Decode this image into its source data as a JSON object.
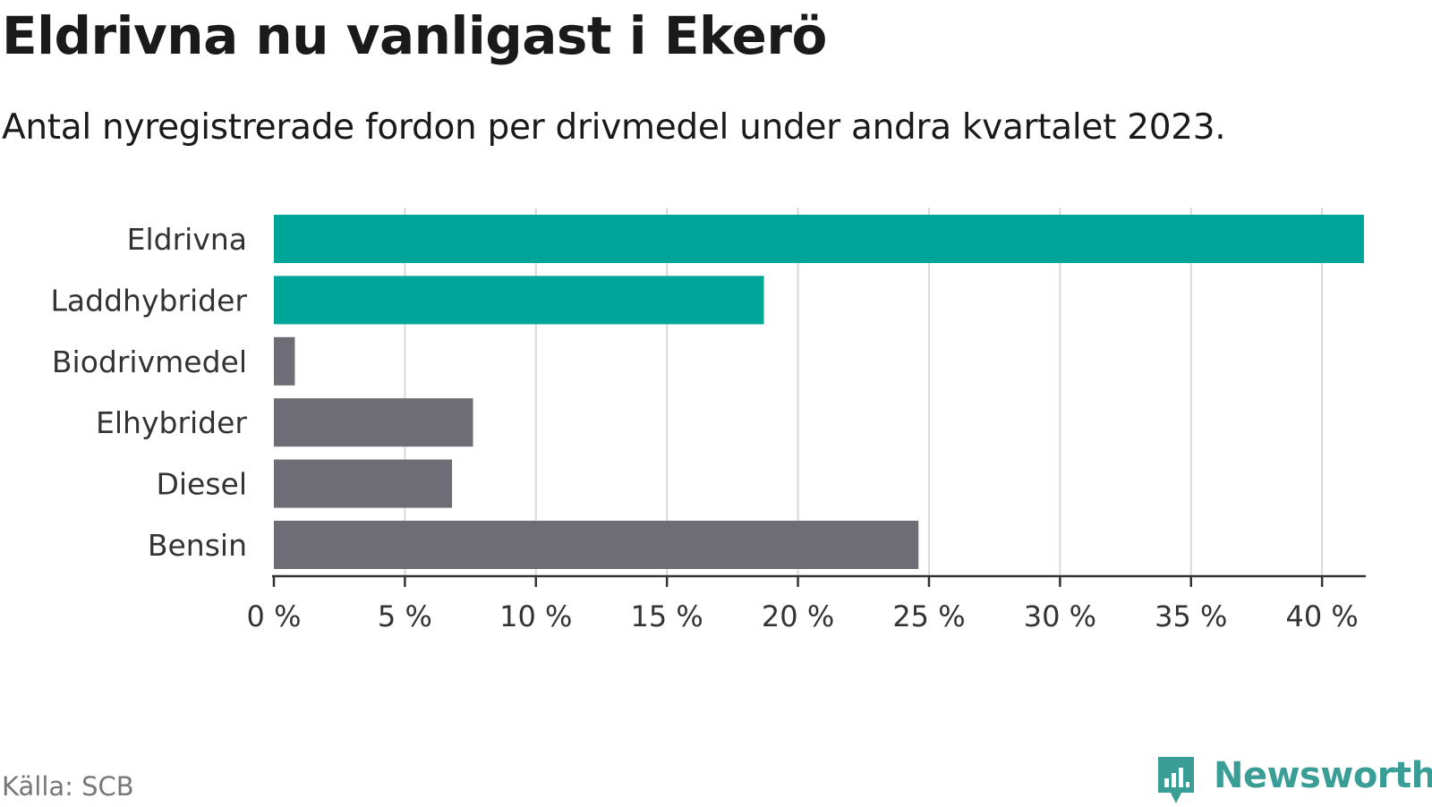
{
  "header": {
    "title": "Eldrivna nu vanligast i Ekerö",
    "subtitle": "Antal nyregistrerade fordon per drivmedel under andra kvartalet 2023."
  },
  "footer": {
    "source": "Källa: SCB",
    "brand": "Newsworthy",
    "brand_icon": "bar-chart-speech-bubble-icon",
    "brand_color": "#3a9e97"
  },
  "chart_data": {
    "type": "bar",
    "orientation": "horizontal",
    "categories": [
      "Eldrivna",
      "Laddhybrider",
      "Biodrivmedel",
      "Elhybrider",
      "Diesel",
      "Bensin"
    ],
    "values": [
      41.6,
      18.7,
      0.8,
      7.6,
      6.8,
      24.6
    ],
    "colors": [
      "#00a59a",
      "#00a59a",
      "#6e6d75",
      "#6e6d75",
      "#6e6d75",
      "#6e6d75"
    ],
    "xlim": [
      0,
      41.6
    ],
    "xticks": [
      0,
      5,
      10,
      15,
      20,
      25,
      30,
      35,
      40
    ],
    "xtick_labels": [
      "0 %",
      "5 %",
      "10 %",
      "15 %",
      "20 %",
      "25 %",
      "30 %",
      "35 %",
      "40 %"
    ],
    "xlabel": "",
    "ylabel": "",
    "grid": "vertical",
    "gridline_color": "#d9d9d9",
    "axis_color": "#333333",
    "legend": "none"
  }
}
